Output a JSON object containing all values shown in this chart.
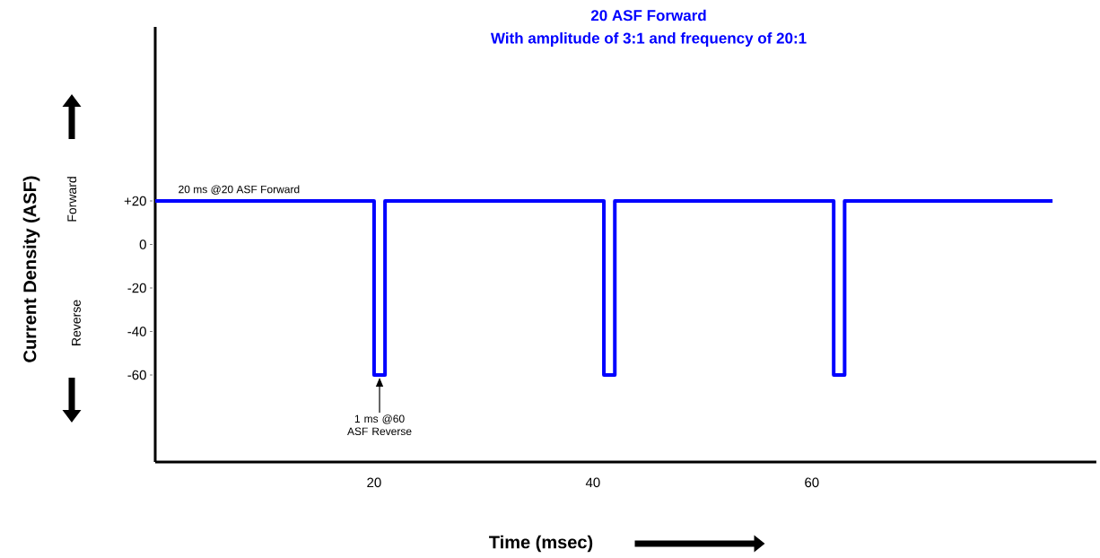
{
  "chart_data": {
    "type": "step",
    "title": "20 ASF Forward",
    "subtitle": "With amplitude of 3:1 and frequency of 20:1",
    "xlabel": "Time (msec)",
    "ylabel": "Current Density (ASF)",
    "x": [
      0,
      20,
      21,
      41,
      42,
      62,
      63,
      82
    ],
    "series": [
      {
        "color": "#0000ff",
        "values": [
          20,
          -60,
          20,
          -60,
          20,
          -60,
          20,
          20
        ]
      }
    ],
    "xlim": [
      0,
      86
    ],
    "ylim": [
      -100,
      100
    ],
    "xticks": [
      20,
      40,
      60
    ],
    "yticks": [
      {
        "value": 20,
        "label": "+20"
      },
      0,
      -20,
      -40,
      -60
    ],
    "annotations": [
      {
        "text": "20 ms @20 ASF Forward",
        "x": 2,
        "y": 20
      },
      "1 ms @60 ASF Reverse",
      "Forward",
      "Reverse"
    ]
  }
}
